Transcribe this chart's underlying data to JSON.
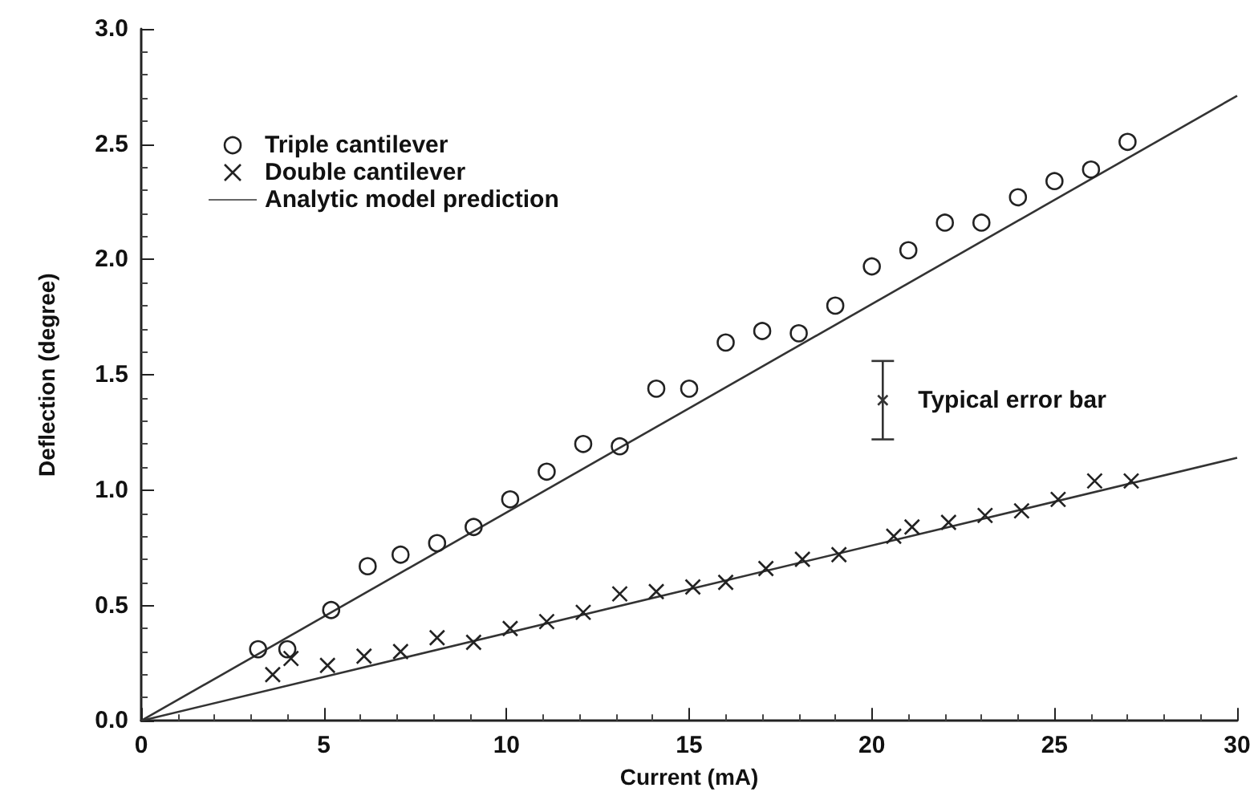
{
  "chart_data": {
    "type": "scatter",
    "xlabel": "Current (mA)",
    "ylabel": "Deflection (degree)",
    "xlim": [
      0,
      30
    ],
    "xticks": [
      0,
      5,
      10,
      15,
      20,
      25,
      30
    ],
    "ylim": [
      0,
      3
    ],
    "yticks": [
      {
        "value": 0,
        "label": "0.0"
      },
      {
        "value": 0.5,
        "label": "0.5"
      },
      {
        "value": 1,
        "label": "1.0"
      },
      {
        "value": 1.5,
        "label": "1.5"
      },
      {
        "value": 2,
        "label": "2.0"
      },
      {
        "value": 2.5,
        "label": "2.5"
      },
      {
        "value": 3,
        "label": "3.0"
      }
    ],
    "grid": false,
    "legend": "top left",
    "series": [
      {
        "name": "Triple cantilever",
        "marker": "circle",
        "color": "#222222",
        "x": [
          3.2,
          4,
          5.2,
          6.2,
          7.1,
          8.1,
          9.1,
          10.1,
          11.1,
          12.1,
          13.1,
          14.1,
          15,
          16,
          17,
          18,
          19,
          20,
          21,
          22,
          23,
          24,
          25,
          26,
          27
        ],
        "values": [
          0.31,
          0.31,
          0.48,
          0.67,
          0.72,
          0.77,
          0.84,
          0.96,
          1.08,
          1.2,
          1.19,
          1.44,
          1.44,
          1.64,
          1.69,
          1.68,
          1.8,
          1.97,
          2.04,
          2.16,
          2.16,
          2.27,
          2.34,
          2.39,
          2.51
        ]
      },
      {
        "name": "Double cantilever",
        "marker": "cross",
        "color": "#222222",
        "x": [
          3.6,
          4.1,
          5.1,
          6.1,
          7.1,
          8.1,
          9.1,
          10.1,
          11.1,
          12.1,
          13.1,
          14.1,
          15.1,
          16,
          17.1,
          18.1,
          19.1,
          20.6,
          21.1,
          22.1,
          23.1,
          24.1,
          25.1,
          26.1,
          27.1
        ],
        "values": [
          0.2,
          0.27,
          0.24,
          0.28,
          0.3,
          0.36,
          0.34,
          0.4,
          0.43,
          0.47,
          0.55,
          0.56,
          0.58,
          0.6,
          0.66,
          0.7,
          0.72,
          0.8,
          0.84,
          0.86,
          0.89,
          0.91,
          0.96,
          1.04,
          1.04
        ]
      },
      {
        "name": "Analytic model prediction",
        "type": "line",
        "marker": "none",
        "line_style": "solid",
        "color": "#333333",
        "x": [
          0,
          30
        ],
        "values": [
          0,
          2.71
        ]
      },
      {
        "type": "line",
        "marker": "none",
        "line_style": "solid",
        "color": "#333333",
        "x": [
          0,
          30
        ],
        "values": [
          0,
          1.14
        ]
      },
      {
        "marker": "cross",
        "color": "#333333",
        "x": [
          20.3
        ],
        "values": [
          1.39
        ],
        "errors": [
          0.17
        ]
      }
    ],
    "annotations": [
      {
        "text": "Typical error bar",
        "x": 20.3,
        "y": 1.39
      }
    ]
  }
}
